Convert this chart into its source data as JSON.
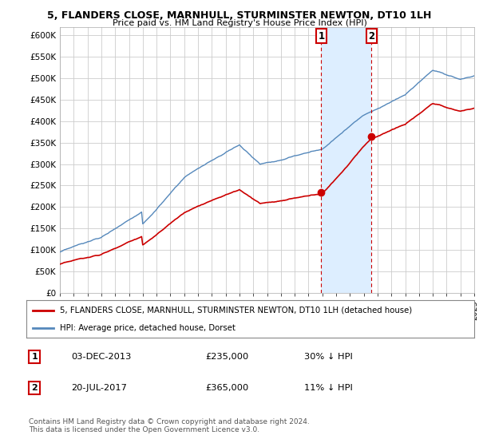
{
  "title1": "5, FLANDERS CLOSE, MARNHULL, STURMINSTER NEWTON, DT10 1LH",
  "title2": "Price paid vs. HM Land Registry's House Price Index (HPI)",
  "ylabel_ticks": [
    "£0",
    "£50K",
    "£100K",
    "£150K",
    "£200K",
    "£250K",
    "£300K",
    "£350K",
    "£400K",
    "£450K",
    "£500K",
    "£550K",
    "£600K"
  ],
  "ytick_values": [
    0,
    50000,
    100000,
    150000,
    200000,
    250000,
    300000,
    350000,
    400000,
    450000,
    500000,
    550000,
    600000
  ],
  "ylim": [
    0,
    620000
  ],
  "hpi_color": "#5588bb",
  "price_color": "#cc0000",
  "bg_color": "#ffffff",
  "shade_color": "#ddeeff",
  "grid_color": "#cccccc",
  "sale1": {
    "date_num": 2013.92,
    "price": 235000,
    "label": "1"
  },
  "sale2": {
    "date_num": 2017.55,
    "price": 365000,
    "label": "2"
  },
  "legend_line1": "5, FLANDERS CLOSE, MARNHULL, STURMINSTER NEWTON, DT10 1LH (detached house)",
  "legend_line2": "HPI: Average price, detached house, Dorset",
  "table_row1": [
    "1",
    "03-DEC-2013",
    "£235,000",
    "30% ↓ HPI"
  ],
  "table_row2": [
    "2",
    "20-JUL-2017",
    "£365,000",
    "11% ↓ HPI"
  ],
  "footnote": "Contains HM Land Registry data © Crown copyright and database right 2024.\nThis data is licensed under the Open Government Licence v3.0.",
  "xstart": 1995,
  "xend": 2025
}
